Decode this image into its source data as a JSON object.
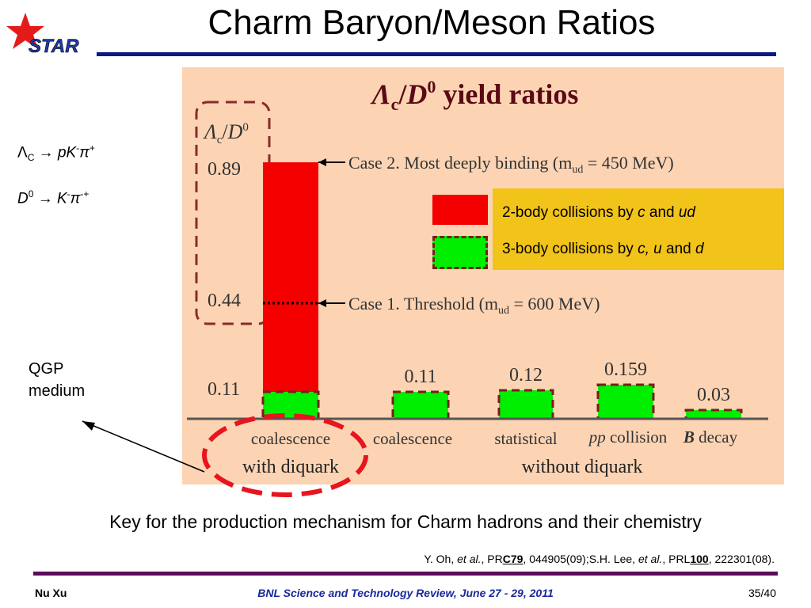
{
  "slide": {
    "title": "Charm Baryon/Meson Ratios",
    "logo_text": "STAR",
    "decay_lambda": {
      "a": "Λ",
      "b": "C",
      "c": " → ",
      "d": "pK",
      "e": "-",
      "f": "π",
      "g": "+"
    },
    "decay_d0": {
      "a": "D",
      "b": "0",
      "c": " → ",
      "d": "K",
      "e": "-",
      "f": "π",
      "g": "-+"
    },
    "qgp_label": {
      "line1": "QGP",
      "line2": "medium"
    },
    "caption": "Key for the production mechanism for Charm hadrons and their chemistry",
    "reference": {
      "p1": "Y. Oh, ",
      "p2": "et al.",
      "p3": ", PR",
      "p4": "C79",
      "p5": ", 044905(09);S.H. Lee, ",
      "p6": "et al.",
      "p7": ", PRL",
      "p8": "100",
      "p9": ", 222301(08)."
    },
    "footer": {
      "left": "Nu Xu",
      "center": "BNL Science and Technology Review, June 27 - 29, 2011",
      "right": "35/40"
    },
    "colors": {
      "title_rule": "#0c1a80",
      "footer_rule": "#5a0c5a",
      "panel": "#fcd4b4",
      "legend_bg": "#f2c318",
      "red": "#f40000",
      "green": "#00ee00",
      "dashed": "#7a1d1d",
      "qgp_circle": "#e8141e"
    }
  },
  "legend": {
    "red": {
      "a": "2-body collisions by ",
      "b": "c",
      "c": " and ",
      "d": "ud"
    },
    "green": {
      "a": "3-body collisions by ",
      "b": "c, u",
      "c": " and ",
      "d": "d"
    }
  },
  "chart_data": {
    "type": "bar",
    "title": {
      "a": "Λ",
      "b": "c",
      "c": "/",
      "d": "D",
      "e": "0",
      "f": " yield ratios"
    },
    "ylabel": {
      "a": "Λ",
      "b": "c",
      "c": "/",
      "d": "D",
      "e": "0"
    },
    "y_ticks": [
      "0.89",
      "0.44",
      "0.11"
    ],
    "ylim": [
      0,
      0.95
    ],
    "bars": [
      {
        "category": "coalescence",
        "two_body": 0.89,
        "case1": 0.44,
        "three_body": 0.11,
        "label": ""
      },
      {
        "category": "coalescence",
        "three_body": 0.11,
        "label": "0.11"
      },
      {
        "category": "statistical",
        "three_body": 0.12,
        "label": "0.12"
      },
      {
        "category": "pp collision",
        "three_body": 0.159,
        "label": "0.159"
      },
      {
        "category": "B decay",
        "three_body": 0.03,
        "label": "0.03"
      }
    ],
    "xlabels": [
      {
        "a": "coalescence"
      },
      {
        "a": "coalescence"
      },
      {
        "a": "statistical"
      },
      {
        "a": "pp",
        "b": " collision"
      },
      {
        "a": "B",
        "b": " decay"
      }
    ],
    "groups": [
      "with diquark",
      "without diquark"
    ],
    "annotations": {
      "case2": {
        "a": "Case 2. Most deeply binding (m",
        "b": "ud",
        "c": " = 450 MeV)"
      },
      "case1": {
        "a": "Case 1. Threshold (m",
        "b": "ud",
        "c": " = 600 MeV)"
      }
    }
  }
}
